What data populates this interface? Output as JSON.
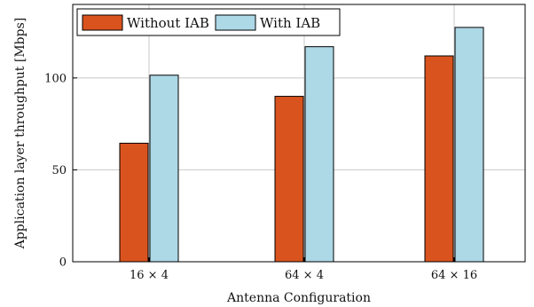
{
  "chart_data": {
    "type": "bar",
    "categories": [
      "16 × 4",
      "64 × 4",
      "64 × 16"
    ],
    "series": [
      {
        "name": "Without IAB",
        "values": [
          64.5,
          90,
          112
        ],
        "color": "#d9531e"
      },
      {
        "name": "With IAB",
        "values": [
          101.5,
          117,
          127.5
        ],
        "color": "#add8e6"
      }
    ],
    "title": "",
    "xlabel": "Antenna Configuration",
    "ylabel": "Application layer throughput [Mbps]",
    "ylim": [
      0,
      140
    ],
    "yticks": [
      0,
      50,
      100
    ],
    "grid": true,
    "legend_position": "top-left"
  }
}
